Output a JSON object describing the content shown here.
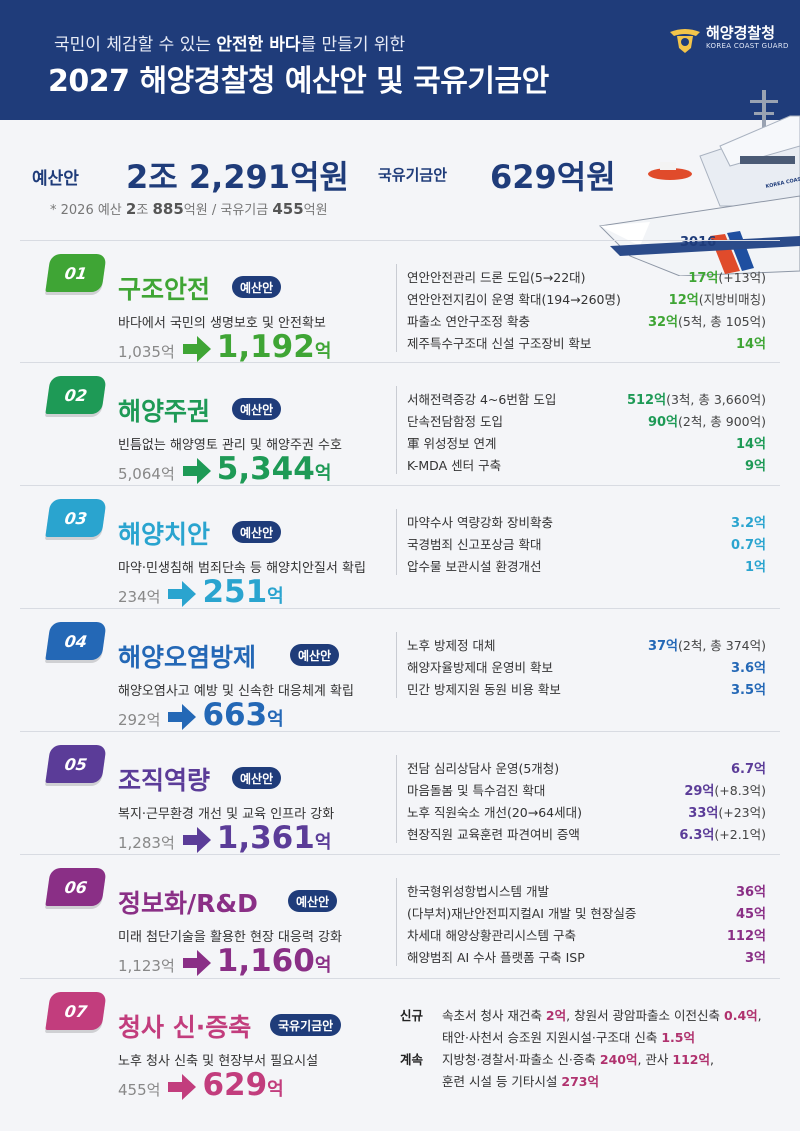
{
  "header": {
    "subtitle_pre": "국민이 체감할 수 있는",
    "subtitle_bold": "안전한 바다",
    "subtitle_post": "를 만들기 위한",
    "title": "2027 해양경찰청 예산안 및 국유기금안"
  },
  "logo": {
    "name_ko": "해양경찰청",
    "name_en": "KOREA COAST GUARD"
  },
  "ship": {
    "hull_number": "3016",
    "label": "KOREA COAST GUARD"
  },
  "budget": {
    "label": "예산안",
    "value": "2조 2,291억원",
    "fund_label": "국유기금안",
    "fund_value": "629억원",
    "prev_prefix": "* 2026 예산",
    "prev_budget_a": "2",
    "prev_budget_b": "조",
    "prev_budget_c": "885",
    "prev_budget_d": "억원",
    "prev_sep": "/ 국유기금",
    "prev_fund": "455",
    "prev_fund_unit": "억원"
  },
  "sections": [
    {
      "num": "01",
      "title": "구조안전",
      "tag": "예산안",
      "desc": "바다에서 국민의 생명보호 및 안전확보",
      "prev": "1,035억",
      "now": "1,192",
      "unit": "억",
      "color": "#3fa535",
      "items": [
        {
          "name": "연안안전관리 드론 도입(5→22대)",
          "val": "17억",
          "extra": "(+13억)"
        },
        {
          "name": "연안안전지킴이 운영 확대(194→260명)",
          "val": "12억",
          "extra": "(지방비매칭)"
        },
        {
          "name": "파출소 연안구조정 확충",
          "val": "32억",
          "extra": "(5척, 총 105억)"
        },
        {
          "name": "제주특수구조대 신설 구조장비 확보",
          "val": "14억",
          "extra": ""
        }
      ]
    },
    {
      "num": "02",
      "title": "해양주권",
      "tag": "예산안",
      "desc": "빈틈없는 해양영토 관리 및 해양주권 수호",
      "prev": "5,064억",
      "now": "5,344",
      "unit": "억",
      "color": "#1e9a56",
      "items": [
        {
          "name": "서해전력증강 4~6번함 도입",
          "val": "512억",
          "extra": "(3척, 총 3,660억)"
        },
        {
          "name": "단속전담함정 도입",
          "val": "90억",
          "extra": "(2척, 총 900억)"
        },
        {
          "name": "軍 위성정보 연계",
          "val": "14억",
          "extra": ""
        },
        {
          "name": "K-MDA 센터 구축",
          "val": "9억",
          "extra": ""
        }
      ]
    },
    {
      "num": "03",
      "title": "해양치안",
      "tag": "예산안",
      "desc": "마약·민생침해 범죄단속 등 해양치안질서 확립",
      "prev": "234억",
      "now": "251",
      "unit": "억",
      "color": "#2aa4cf",
      "items": [
        {
          "name": "마약수사 역량강화 장비확충",
          "val": "3.2억",
          "extra": ""
        },
        {
          "name": "국경범죄 신고포상금 확대",
          "val": "0.7억",
          "extra": ""
        },
        {
          "name": "압수물 보관시설 환경개선",
          "val": "1억",
          "extra": ""
        }
      ]
    },
    {
      "num": "04",
      "title": "해양오염방제",
      "tag": "예산안",
      "desc": "해양오염사고 예방 및 신속한 대응체계 확립",
      "prev": "292억",
      "now": "663",
      "unit": "억",
      "color": "#2468b6",
      "items": [
        {
          "name": "노후 방제정 대체",
          "val": "37억",
          "extra": "(2척, 총 374억)"
        },
        {
          "name": "해양자율방제대 운영비 확보",
          "val": "3.6억",
          "extra": ""
        },
        {
          "name": "민간 방제지원 동원 비용 확보",
          "val": "3.5억",
          "extra": ""
        }
      ]
    },
    {
      "num": "05",
      "title": "조직역량",
      "tag": "예산안",
      "desc": "복지·근무환경 개선 및 교육 인프라 강화",
      "prev": "1,283억",
      "now": "1,361",
      "unit": "억",
      "color": "#5b3c98",
      "items": [
        {
          "name": "전담 심리상담사 운영(5개청)",
          "val": "6.7억",
          "extra": ""
        },
        {
          "name": "마음돌봄 및 특수검진 확대",
          "val": "29억",
          "extra": "(+8.3억)"
        },
        {
          "name": "노후 직원숙소 개선(20→64세대)",
          "val": "33억",
          "extra": "(+23억)"
        },
        {
          "name": "현장직원 교육훈련 파견여비 증액",
          "val": "6.3억",
          "extra": "(+2.1억)"
        }
      ]
    },
    {
      "num": "06",
      "title": "정보화/R&D",
      "tag": "예산안",
      "desc": "미래 첨단기술을 활용한 현장 대응력 강화",
      "prev": "1,123억",
      "now": "1,160",
      "unit": "억",
      "color": "#8a2f86",
      "items": [
        {
          "name": "한국형위성항법시스템 개발",
          "val": "36억",
          "extra": ""
        },
        {
          "name": "(다부처)재난안전피지컬AI 개발 및 현장실증",
          "val": "45억",
          "extra": ""
        },
        {
          "name": "차세대 해양상황관리시스템 구축",
          "val": "112억",
          "extra": ""
        },
        {
          "name": "해양범죄 AI 수사 플랫폼 구축 ISP",
          "val": "3억",
          "extra": ""
        }
      ]
    },
    {
      "num": "07",
      "title": "청사 신·증축",
      "tag": "국유기금안",
      "desc": "노후 청사 신축 및 현장부서 필요시설",
      "prev": "455억",
      "now": "629",
      "unit": "억",
      "color": "#c23d7d"
    }
  ],
  "section7_details": {
    "new_key": "신규",
    "new_line1_a": "속초서 청사 재건축 ",
    "new_line1_b": "2억",
    "new_line1_c": ", 창원서 광암파출소 이전신축 ",
    "new_line1_d": "0.4억",
    "new_line1_e": ",",
    "new_line2_a": "태안·사천서 승조원 지원시설·구조대 신축 ",
    "new_line2_b": "1.5억",
    "cont_key": "계속",
    "cont_line1_a": "지방청·경찰서·파출소 신·증축 ",
    "cont_line1_b": "240억",
    "cont_line1_c": ", 관사 ",
    "cont_line1_d": "112억",
    "cont_line1_e": ",",
    "cont_line2_a": "훈련 시설 등 기타시설 ",
    "cont_line2_b": "273억"
  },
  "colors": {
    "header_bg": "#1f3c7a",
    "page_bg": "#f4f5f8",
    "navy": "#1f3c7a"
  }
}
